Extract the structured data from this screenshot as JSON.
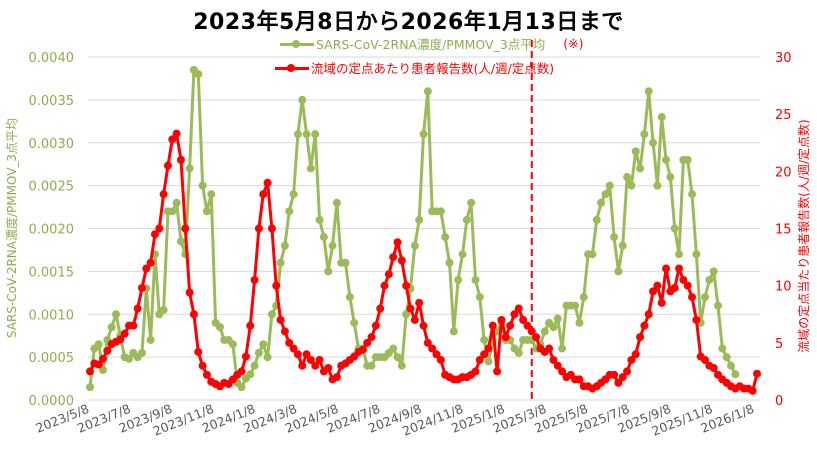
{
  "title": "2023年5月8日から2026年1月13日まで",
  "legend": {
    "green_label": "SARS-CoV-2RNA濃度/PMMOV_3点平均",
    "green_note": "(※)",
    "red_label": "流域の定点あたり患者報告数(人/週/定点数)"
  },
  "colors": {
    "green": "#9bbb59",
    "green_text": "#8fad4e",
    "red": "#ff0000",
    "grid": "#d9d9d9"
  },
  "chart_data": {
    "type": "line",
    "title": "2023年5月8日から2026年1月13日まで",
    "xlabel": "",
    "ylabel_left": "SARS-CoV-2RNA濃度/PMMOV_3点平均",
    "ylabel_right": "流域の定点当たり患者報告数(人/週/定点数)",
    "ylim_left": [
      0,
      0.004
    ],
    "ylim_right": [
      0,
      30
    ],
    "yticks_left": [
      "0.0000",
      "0.0005",
      "0.0010",
      "0.0015",
      "0.0020",
      "0.0025",
      "0.0030",
      "0.0035",
      "0.0040"
    ],
    "yticks_right": [
      "0",
      "5",
      "10",
      "15",
      "20",
      "25",
      "30"
    ],
    "xticks": [
      "2023/5/8",
      "2023/7/8",
      "2023/9/8",
      "2023/11/8",
      "2024/1/8",
      "2024/3/8",
      "2024/5/8",
      "2024/7/8",
      "2024/9/8",
      "2024/11/8",
      "2025/1/8",
      "2025/3/8",
      "2025/5/8",
      "2025/7/8",
      "2025/9/8",
      "2025/11/8",
      "2026/1/8"
    ],
    "grid": true,
    "legend_position": "top-center",
    "annotation": {
      "type": "vline",
      "style": "dashed",
      "color": "#ff0000",
      "x_label": "approx 2025/4/28",
      "week_index": 102
    },
    "x_start": "2023/5/8",
    "x_step": "1 week",
    "series": [
      {
        "name": "SARS-CoV-2RNA濃度/PMMOV_3点平均",
        "axis": "left",
        "color": "#9bbb59",
        "values": [
          0.00015,
          0.0006,
          0.00065,
          0.00035,
          0.0007,
          0.00085,
          0.001,
          0.00075,
          0.0005,
          0.00048,
          0.00055,
          0.0005,
          0.00055,
          0.0013,
          0.0007,
          0.0017,
          0.001,
          0.00105,
          0.0022,
          0.0022,
          0.0023,
          0.00185,
          0.0017,
          0.0027,
          0.00385,
          0.0038,
          0.0025,
          0.0022,
          0.0024,
          0.0009,
          0.00085,
          0.0007,
          0.0007,
          0.00065,
          0.0002,
          0.00015,
          0.00025,
          0.0003,
          0.0004,
          0.00055,
          0.00065,
          0.0005,
          0.001,
          0.0011,
          0.0016,
          0.0018,
          0.0022,
          0.0024,
          0.0031,
          0.0035,
          0.0031,
          0.0027,
          0.0031,
          0.0021,
          0.0019,
          0.0015,
          0.0018,
          0.0023,
          0.0016,
          0.0016,
          0.0012,
          0.0009,
          0.0006,
          0.0006,
          0.0004,
          0.0004,
          0.0005,
          0.0005,
          0.0005,
          0.00055,
          0.0006,
          0.0005,
          0.0004,
          0.001,
          0.0013,
          0.0018,
          0.0021,
          0.0031,
          0.0036,
          0.0022,
          0.0022,
          0.0022,
          0.0019,
          0.0016,
          0.0008,
          0.0014,
          0.0017,
          0.0021,
          0.0023,
          0.0014,
          0.0012,
          0.0007,
          0.00045,
          0.0007,
          0.0008,
          0.0009,
          0.0007,
          0.0007,
          0.0006,
          0.00055,
          0.0007,
          0.0007,
          0.0007,
          0.0006,
          0.00065,
          0.0008,
          0.0009,
          0.00085,
          0.00095,
          0.0006,
          0.0011,
          0.0011,
          0.0011,
          0.0009,
          0.0012,
          0.0017,
          0.0017,
          0.0021,
          0.0023,
          0.0024,
          0.0025,
          0.0019,
          0.0015,
          0.0018,
          0.0026,
          0.0025,
          0.0029,
          0.0027,
          0.0031,
          0.0036,
          0.003,
          0.0025,
          0.0033,
          0.0028,
          0.0026,
          0.002,
          0.0017,
          0.0028,
          0.0028,
          0.0024,
          0.0017,
          0.0009,
          0.0012,
          0.0014,
          0.0015,
          0.0011,
          0.0006,
          0.0005,
          0.0004,
          0.0003
        ]
      },
      {
        "name": "流域の定点あたり患者報告数(人/週/定点数)",
        "axis": "right",
        "color": "#ff0000",
        "values": [
          2.5,
          3.2,
          3.1,
          3.6,
          4.3,
          4.9,
          5.1,
          5.3,
          5.8,
          6.5,
          6.5,
          8.0,
          9.8,
          11.5,
          12.0,
          14.5,
          15.0,
          18.0,
          20.5,
          22.8,
          23.3,
          21.0,
          15.0,
          9.4,
          7.5,
          4.2,
          3.0,
          2.2,
          1.6,
          1.4,
          1.2,
          1.5,
          1.4,
          1.8,
          2.2,
          2.5,
          3.8,
          6.5,
          10.5,
          15.0,
          18.0,
          19.0,
          15.0,
          10.0,
          7.0,
          6.0,
          5.0,
          4.5,
          4.0,
          3.0,
          4.0,
          3.5,
          3.0,
          3.5,
          2.5,
          2.8,
          1.8,
          2.0,
          3.0,
          3.2,
          3.5,
          3.8,
          4.2,
          4.4,
          5.0,
          5.5,
          6.5,
          8.0,
          10.0,
          11.0,
          12.5,
          13.8,
          12.2,
          10.0,
          8.0,
          7.0,
          8.5,
          6.5,
          5.0,
          4.5,
          4.0,
          3.5,
          2.2,
          2.0,
          1.8,
          1.8,
          2.0,
          2.0,
          2.2,
          2.5,
          3.5,
          4.0,
          4.5,
          6.5,
          2.5,
          7.0,
          5.5,
          6.5,
          7.5,
          8.0,
          7.0,
          6.5,
          6.0,
          5.5,
          4.5,
          4.2,
          4.5,
          3.5,
          3.0,
          2.5,
          2.0,
          2.2,
          1.8,
          1.8,
          1.2,
          1.2,
          1.0,
          1.2,
          1.5,
          1.8,
          2.2,
          2.2,
          1.5,
          2.0,
          2.5,
          3.5,
          4.0,
          5.5,
          6.5,
          7.5,
          9.5,
          10.0,
          8.5,
          11.5,
          9.5,
          9.8,
          11.5,
          10.5,
          10.0,
          9.0,
          7.0,
          3.8,
          3.5,
          3.0,
          2.8,
          2.2,
          1.8,
          1.5,
          1.2,
          1.0,
          1.2,
          1.0,
          1.0,
          0.8,
          2.3
        ]
      }
    ]
  }
}
